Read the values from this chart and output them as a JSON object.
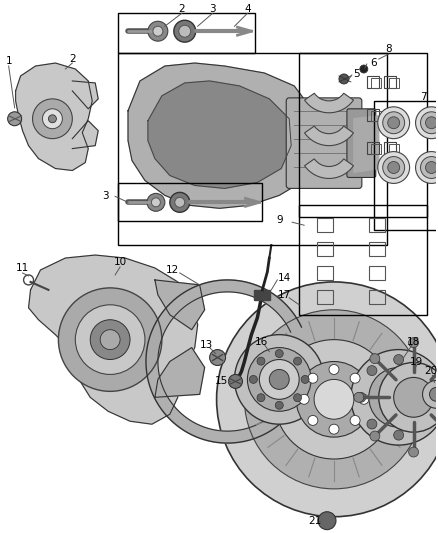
{
  "bg_color": "#ffffff",
  "fig_width": 4.38,
  "fig_height": 5.33,
  "dpi": 100,
  "label_fontsize": 7.5,
  "line_color": "#333333",
  "label_color": "#000000"
}
